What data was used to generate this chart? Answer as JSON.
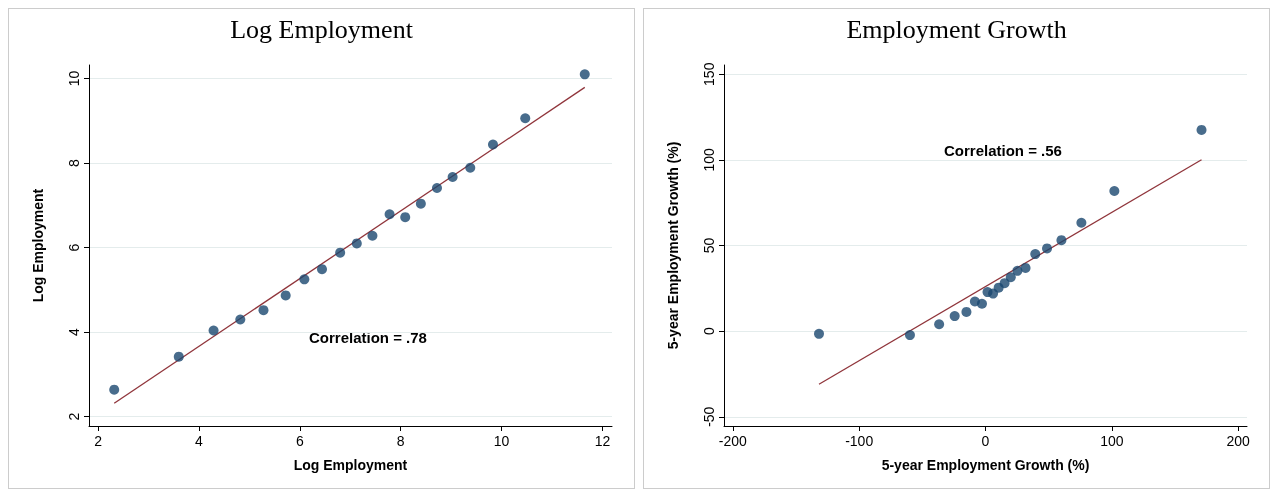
{
  "chart_data": [
    {
      "type": "scatter",
      "title": "Log Employment",
      "xlabel": "Log Employment",
      "ylabel": "Log Employment",
      "annotations": [
        "Correlation = .78"
      ],
      "xlim": [
        1.82,
        12.19
      ],
      "xticks": [
        2,
        4,
        6,
        8,
        10,
        12
      ],
      "ylim": [
        1.78,
        10.32
      ],
      "yticks": [
        2,
        4,
        6,
        8,
        10
      ],
      "grid": "y",
      "series": [
        {
          "marker": "circle",
          "color": "#1a476f",
          "x": [
            2.32,
            3.6,
            4.29,
            4.82,
            5.28,
            5.72,
            6.09,
            6.44,
            6.8,
            7.13,
            7.44,
            7.78,
            8.09,
            8.4,
            8.72,
            9.03,
            9.38,
            9.83,
            10.47,
            11.65
          ],
          "values": [
            2.64,
            3.42,
            4.04,
            4.3,
            4.52,
            4.87,
            5.25,
            5.49,
            5.88,
            6.1,
            6.28,
            6.79,
            6.72,
            7.04,
            7.41,
            7.67,
            7.89,
            8.44,
            9.06,
            10.1
          ]
        },
        {
          "type": "line",
          "marker": "none",
          "color": "#90353b",
          "x": [
            2.32,
            11.65
          ],
          "values": [
            2.32,
            9.79
          ]
        }
      ]
    },
    {
      "type": "scatter",
      "title": "Employment Growth",
      "xlabel": "5-year Employment Growth (%)",
      "ylabel": "5-year Employment Growth (%)",
      "annotations": [
        "Correlation = .56"
      ],
      "xlim": [
        -207,
        207
      ],
      "xticks": [
        -200,
        -100,
        0,
        100,
        200
      ],
      "ylim": [
        -55.4,
        155.4
      ],
      "yticks": [
        -50,
        0,
        50,
        100,
        150
      ],
      "grid": "y",
      "series": [
        {
          "marker": "circle",
          "color": "#1a476f",
          "x": [
            -131.8,
            -59.8,
            -36.7,
            -24.4,
            -15.1,
            -8.4,
            -2.8,
            1.6,
            6.0,
            10.4,
            15.1,
            20.0,
            25.3,
            31.7,
            39.4,
            48.7,
            60.1,
            75.9,
            102.0,
            171.0
          ],
          "values": [
            -1.6,
            -2.3,
            4.0,
            8.8,
            11.2,
            17.3,
            16.0,
            22.8,
            21.9,
            25.4,
            28.0,
            31.5,
            35.2,
            36.9,
            45.0,
            48.3,
            53.1,
            63.3,
            81.8,
            117.5
          ]
        },
        {
          "type": "line",
          "marker": "none",
          "color": "#90353b",
          "x": [
            -131.8,
            171.0
          ],
          "values": [
            -31.0,
            100.1
          ]
        }
      ]
    }
  ]
}
